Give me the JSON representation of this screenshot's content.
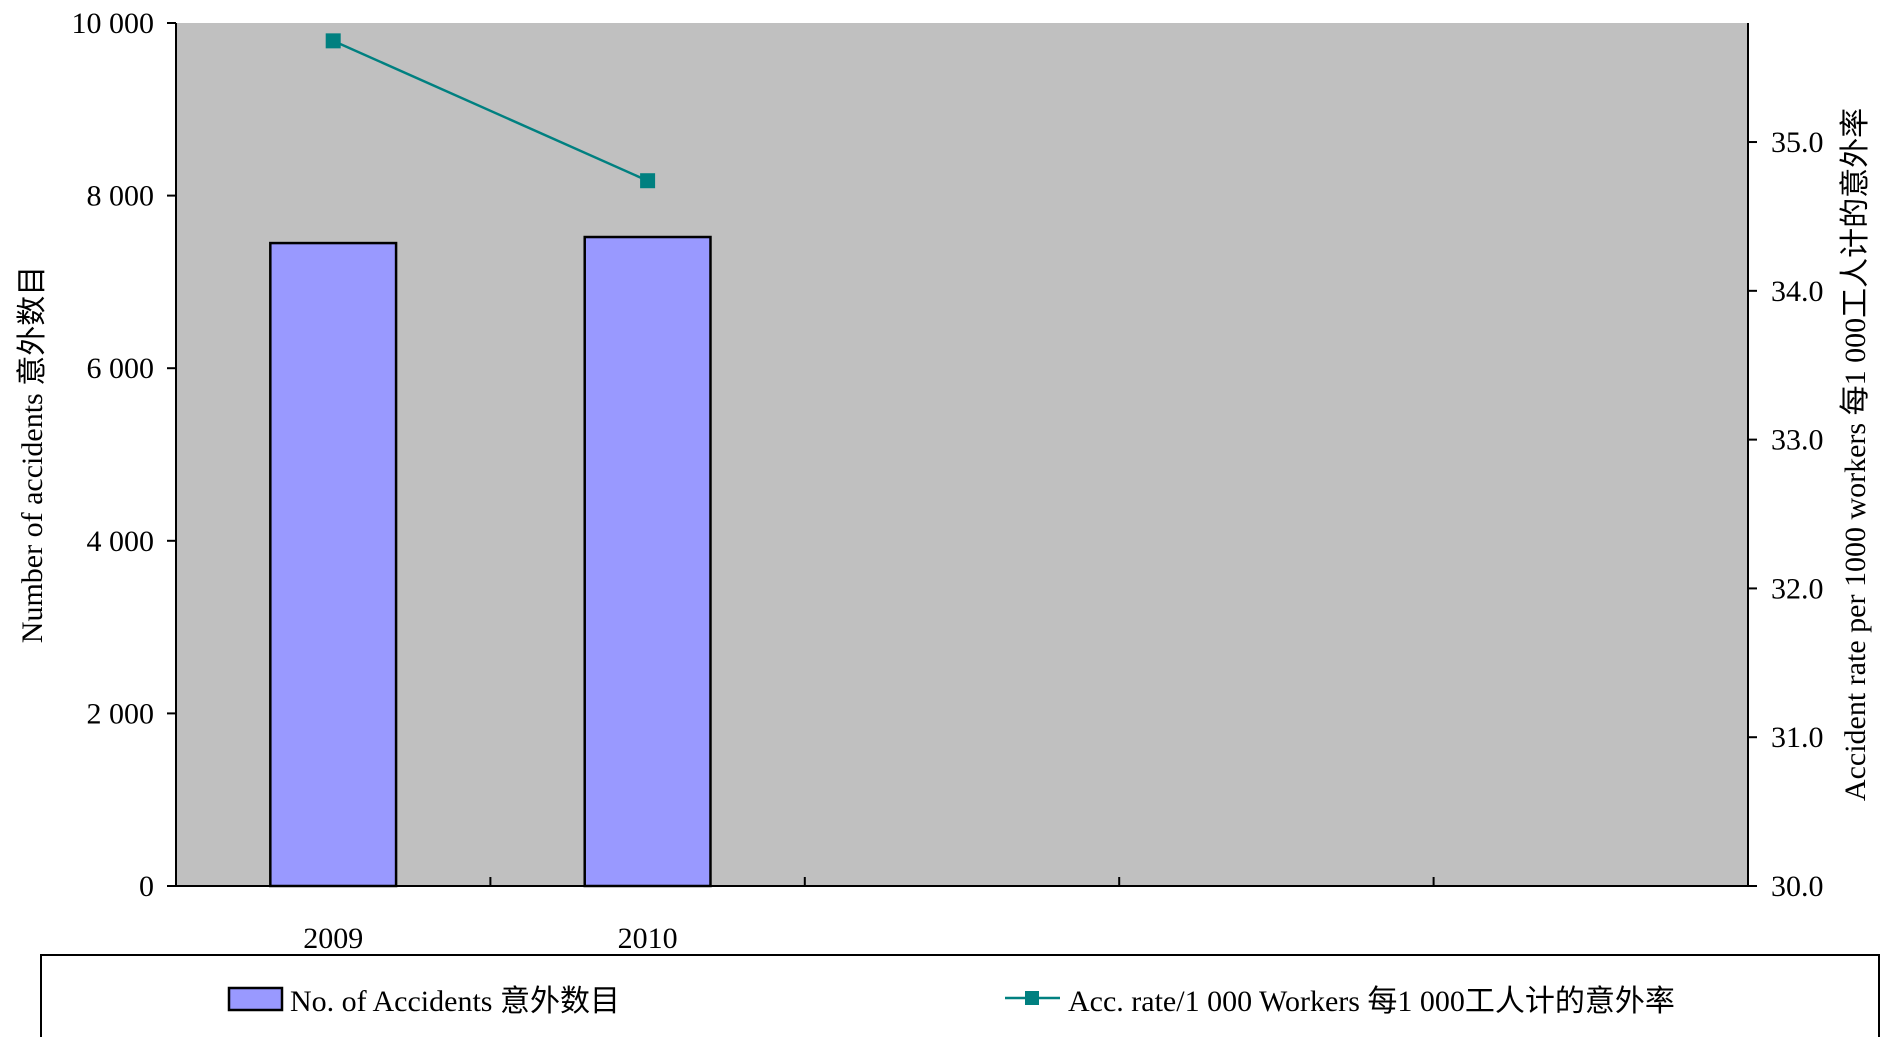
{
  "chart_data": {
    "type": "bar",
    "categories": [
      "2009",
      "2010",
      "",
      "",
      ""
    ],
    "series": [
      {
        "name": "No. of Accidents 意外数目",
        "type": "bar",
        "axis": "left",
        "color": "#9999FF",
        "values": [
          7450,
          7520,
          null,
          null,
          null
        ]
      },
      {
        "name": "Acc. rate/1 000 Workers 每1 000工人计的意外率",
        "type": "line",
        "axis": "right",
        "color": "#008080",
        "marker": "square",
        "values": [
          35.68,
          34.74,
          null,
          null,
          null
        ]
      }
    ],
    "ylabel": "Number of accidents 意外数目",
    "y2label": "Accident rate per 1000 workers 每1 000工人计的意外率",
    "ylim": [
      0,
      10000
    ],
    "y2lim": [
      30.0,
      35.8
    ],
    "yticks": [
      "0",
      "2 000",
      "4 000",
      "6 000",
      "8 000",
      "10 000"
    ],
    "yticks_values": [
      0,
      2000,
      4000,
      6000,
      8000,
      10000
    ],
    "y2ticks": [
      "30.0",
      "31.0",
      "32.0",
      "33.0",
      "34.0",
      "35.0"
    ],
    "y2ticks_values": [
      30,
      31,
      32,
      33,
      34,
      35
    ],
    "plot_background": "#C0C0C0",
    "grid": false,
    "legend_position": "bottom"
  }
}
